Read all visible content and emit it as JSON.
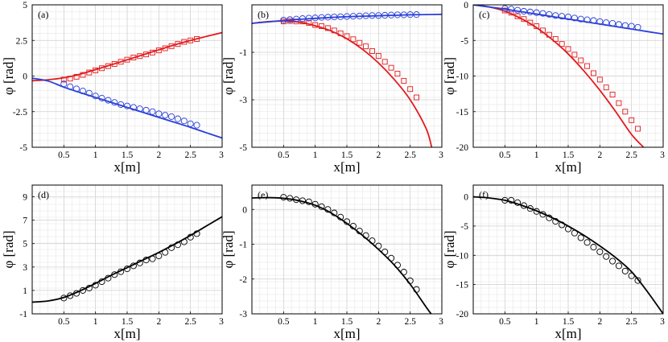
{
  "colors": {
    "red": "#e41a1c",
    "blue": "#2a3fd9",
    "black": "#000000"
  },
  "chart_data": [
    {
      "type": "line",
      "panel": "(a)",
      "xlabel": "x[m]",
      "ylabel": "φ [rad]",
      "xlim": [
        0,
        3
      ],
      "ylim": [
        -5,
        5
      ],
      "xticks": [
        0.5,
        1,
        1.5,
        2,
        2.5,
        3
      ],
      "xtick_labels": [
        "0.5",
        "1",
        "1.5",
        "2",
        "2.5",
        "3"
      ],
      "yticks": [
        -5,
        -2.5,
        0,
        2.5,
        5
      ],
      "ytick_labels": [
        "-5",
        "-2.5",
        "0",
        "2.5",
        "5"
      ],
      "series": [
        {
          "name": "red curve",
          "style": "line",
          "color": "red",
          "x": [
            0,
            0.25,
            0.5,
            0.75,
            1,
            1.25,
            1.5,
            1.75,
            2,
            2.25,
            2.5,
            2.75,
            3
          ],
          "y": [
            -0.33,
            -0.26,
            -0.12,
            0.12,
            0.45,
            0.79,
            1.14,
            1.49,
            1.84,
            2.19,
            2.5,
            2.78,
            3.05
          ]
        },
        {
          "name": "red squares",
          "style": "square",
          "color": "red",
          "x": [
            0.5,
            0.6,
            0.7,
            0.8,
            0.9,
            1.0,
            1.1,
            1.2,
            1.3,
            1.4,
            1.5,
            1.6,
            1.7,
            1.8,
            1.9,
            2.0,
            2.1,
            2.2,
            2.3,
            2.4,
            2.5,
            2.6
          ],
          "y": [
            -0.25,
            -0.18,
            -0.05,
            0.08,
            0.25,
            0.4,
            0.55,
            0.7,
            0.85,
            1.0,
            1.15,
            1.3,
            1.4,
            1.52,
            1.65,
            1.8,
            1.95,
            2.1,
            2.25,
            2.4,
            2.5,
            2.6
          ]
        },
        {
          "name": "blue curve",
          "style": "line",
          "color": "blue",
          "x": [
            0,
            0.25,
            0.5,
            0.75,
            1,
            1.25,
            1.5,
            1.75,
            2,
            2.25,
            2.5,
            2.75,
            3
          ],
          "y": [
            -0.15,
            -0.35,
            -0.78,
            -1.15,
            -1.5,
            -1.85,
            -2.2,
            -2.55,
            -2.9,
            -3.25,
            -3.6,
            -3.98,
            -4.35
          ]
        },
        {
          "name": "blue circles",
          "style": "circle",
          "color": "blue",
          "x": [
            0.5,
            0.6,
            0.7,
            0.8,
            0.9,
            1.0,
            1.1,
            1.2,
            1.3,
            1.4,
            1.5,
            1.6,
            1.7,
            1.8,
            1.9,
            2.0,
            2.1,
            2.2,
            2.3,
            2.4,
            2.5,
            2.6
          ],
          "y": [
            -0.55,
            -0.75,
            -0.9,
            -1.05,
            -1.2,
            -1.4,
            -1.55,
            -1.7,
            -1.85,
            -2.0,
            -2.1,
            -2.2,
            -2.3,
            -2.4,
            -2.5,
            -2.65,
            -2.75,
            -2.85,
            -3.0,
            -3.15,
            -3.35,
            -3.45
          ]
        }
      ]
    },
    {
      "type": "line",
      "panel": "(b)",
      "xlabel": "x[m]",
      "ylabel": "φ [rad]",
      "xlim": [
        0,
        3
      ],
      "ylim": [
        -5,
        1
      ],
      "xticks": [
        0.5,
        1,
        1.5,
        2,
        2.5,
        3
      ],
      "xtick_labels": [
        "0.5",
        "1",
        "1.5",
        "2",
        "2.5",
        "3"
      ],
      "yticks": [
        -5,
        -3,
        -1
      ],
      "ytick_labels": [
        "-5",
        "-3",
        "-1"
      ],
      "series": [
        {
          "name": "red curve",
          "style": "line",
          "color": "red",
          "x": [
            0,
            0.25,
            0.5,
            0.75,
            1,
            1.25,
            1.5,
            1.75,
            2,
            2.25,
            2.5,
            2.75,
            2.84
          ],
          "y": [
            0.22,
            0.29,
            0.32,
            0.27,
            0.12,
            -0.1,
            -0.43,
            -0.88,
            -1.45,
            -2.15,
            -3.0,
            -4.2,
            -5.0
          ]
        },
        {
          "name": "red squares",
          "style": "square",
          "color": "red",
          "x": [
            0.5,
            0.6,
            0.7,
            0.8,
            0.9,
            1.0,
            1.1,
            1.2,
            1.3,
            1.4,
            1.5,
            1.6,
            1.7,
            1.8,
            1.9,
            2.0,
            2.1,
            2.2,
            2.3,
            2.4,
            2.5,
            2.6
          ],
          "y": [
            0.3,
            0.32,
            0.3,
            0.3,
            0.24,
            0.15,
            0.1,
            0.02,
            -0.08,
            -0.2,
            -0.32,
            -0.45,
            -0.6,
            -0.75,
            -0.95,
            -1.15,
            -1.4,
            -1.65,
            -1.9,
            -2.2,
            -2.55,
            -2.9
          ]
        },
        {
          "name": "blue curve",
          "style": "line",
          "color": "blue",
          "x": [
            0,
            0.25,
            0.5,
            0.75,
            1,
            1.25,
            1.5,
            1.75,
            2,
            2.25,
            2.5,
            2.75,
            3
          ],
          "y": [
            0.22,
            0.28,
            0.34,
            0.39,
            0.43,
            0.47,
            0.5,
            0.52,
            0.54,
            0.56,
            0.58,
            0.59,
            0.6
          ]
        },
        {
          "name": "blue circles",
          "style": "circle",
          "color": "blue",
          "x": [
            0.5,
            0.6,
            0.7,
            0.8,
            0.9,
            1.0,
            1.1,
            1.2,
            1.3,
            1.4,
            1.5,
            1.6,
            1.7,
            1.8,
            1.9,
            2.0,
            2.1,
            2.2,
            2.3,
            2.4,
            2.5,
            2.6
          ],
          "y": [
            0.36,
            0.38,
            0.4,
            0.42,
            0.44,
            0.45,
            0.47,
            0.48,
            0.49,
            0.5,
            0.51,
            0.52,
            0.53,
            0.54,
            0.55,
            0.55,
            0.56,
            0.57,
            0.58,
            0.58,
            0.59,
            0.59
          ]
        }
      ]
    },
    {
      "type": "line",
      "panel": "(c)",
      "xlabel": "x[m]",
      "ylabel": "φ [rad]",
      "xlim": [
        0,
        3
      ],
      "ylim": [
        -20,
        0
      ],
      "xticks": [
        0.5,
        1,
        1.5,
        2,
        2.5,
        3
      ],
      "xtick_labels": [
        "0.5",
        "1",
        "1.5",
        "2",
        "2.5",
        "3"
      ],
      "yticks": [
        -20,
        -15,
        -10,
        -5,
        0
      ],
      "ytick_labels": [
        "-20",
        "-15",
        "-10",
        "-5",
        "0"
      ],
      "series": [
        {
          "name": "red curve",
          "style": "line",
          "color": "red",
          "x": [
            0,
            0.25,
            0.5,
            0.75,
            1,
            1.25,
            1.5,
            1.75,
            2,
            2.25,
            2.5,
            2.69
          ],
          "y": [
            0,
            -0.3,
            -0.9,
            -1.9,
            -3.2,
            -4.9,
            -6.9,
            -9.3,
            -12.0,
            -15.0,
            -18.2,
            -20.0
          ]
        },
        {
          "name": "red squares",
          "style": "square",
          "color": "red",
          "x": [
            0.5,
            0.6,
            0.7,
            0.8,
            0.9,
            1.0,
            1.1,
            1.2,
            1.3,
            1.4,
            1.5,
            1.6,
            1.7,
            1.8,
            1.9,
            2.0,
            2.1,
            2.2,
            2.3,
            2.4,
            2.5,
            2.6
          ],
          "y": [
            -0.8,
            -1.1,
            -1.6,
            -2.0,
            -2.5,
            -3.0,
            -3.6,
            -4.2,
            -4.8,
            -5.5,
            -6.2,
            -7.0,
            -7.8,
            -8.6,
            -9.6,
            -10.5,
            -11.6,
            -12.6,
            -13.8,
            -15.0,
            -16.2,
            -17.4
          ]
        },
        {
          "name": "blue curve",
          "style": "line",
          "color": "blue",
          "x": [
            0,
            0.25,
            0.5,
            0.75,
            1,
            1.25,
            1.5,
            1.75,
            2,
            2.25,
            2.5,
            2.75,
            3
          ],
          "y": [
            0,
            -0.3,
            -0.6,
            -0.95,
            -1.3,
            -1.65,
            -2.0,
            -2.35,
            -2.7,
            -3.05,
            -3.4,
            -3.75,
            -4.1
          ]
        },
        {
          "name": "blue circles",
          "style": "circle",
          "color": "blue",
          "x": [
            0.5,
            0.6,
            0.7,
            0.8,
            0.9,
            1.0,
            1.1,
            1.2,
            1.3,
            1.4,
            1.5,
            1.6,
            1.7,
            1.8,
            1.9,
            2.0,
            2.1,
            2.2,
            2.3,
            2.4,
            2.5,
            2.6
          ],
          "y": [
            -0.5,
            -0.6,
            -0.75,
            -0.9,
            -1.0,
            -1.1,
            -1.2,
            -1.35,
            -1.5,
            -1.6,
            -1.7,
            -1.85,
            -2.0,
            -2.1,
            -2.2,
            -2.35,
            -2.5,
            -2.6,
            -2.75,
            -2.9,
            -3.0,
            -3.15
          ]
        }
      ]
    },
    {
      "type": "line",
      "panel": "(d)",
      "xlabel": "x[m]",
      "ylabel": "φ [rad]",
      "xlim": [
        0,
        3
      ],
      "ylim": [
        -1,
        10
      ],
      "xticks": [
        0.5,
        1,
        1.5,
        2,
        2.5,
        3
      ],
      "xtick_labels": [
        "0.5",
        "1",
        "1.5",
        "2",
        "2.5",
        "3"
      ],
      "yticks": [
        -1,
        1,
        3,
        5,
        7,
        9
      ],
      "ytick_labels": [
        "-1",
        "1",
        "3",
        "5",
        "7",
        "9"
      ],
      "series": [
        {
          "name": "black curve",
          "style": "line",
          "color": "black",
          "x": [
            0,
            0.25,
            0.5,
            0.75,
            1,
            1.25,
            1.5,
            1.75,
            2,
            2.25,
            2.5,
            2.75,
            3
          ],
          "y": [
            0.0,
            0.1,
            0.4,
            0.95,
            1.6,
            2.3,
            2.95,
            3.6,
            4.25,
            4.95,
            5.7,
            6.5,
            7.3
          ]
        },
        {
          "name": "black circles",
          "style": "circle",
          "color": "black",
          "x": [
            0.5,
            0.6,
            0.7,
            0.8,
            0.9,
            1.0,
            1.1,
            1.2,
            1.3,
            1.4,
            1.5,
            1.6,
            1.7,
            1.8,
            1.9,
            2.0,
            2.1,
            2.2,
            2.3,
            2.4,
            2.5,
            2.6
          ],
          "y": [
            0.35,
            0.55,
            0.75,
            1.0,
            1.2,
            1.45,
            1.75,
            2.05,
            2.35,
            2.6,
            2.85,
            3.1,
            3.35,
            3.6,
            3.7,
            3.95,
            4.25,
            4.65,
            4.9,
            5.15,
            5.55,
            5.85
          ]
        }
      ]
    },
    {
      "type": "line",
      "panel": "(e)",
      "xlabel": "x[m]",
      "ylabel": "φ [rad]",
      "xlim": [
        0,
        3
      ],
      "ylim": [
        -3,
        0.7
      ],
      "xticks": [
        0.5,
        1,
        1.5,
        2,
        2.5,
        3
      ],
      "xtick_labels": [
        "0.5",
        "1",
        "1.5",
        "2",
        "2.5",
        "3"
      ],
      "yticks": [
        -3,
        -2,
        -1,
        0
      ],
      "ytick_labels": [
        "-3",
        "-2",
        "-1",
        "0"
      ],
      "series": [
        {
          "name": "black curve",
          "style": "line",
          "color": "black",
          "x": [
            0,
            0.25,
            0.5,
            0.75,
            1,
            1.25,
            1.5,
            1.75,
            2,
            2.25,
            2.5,
            2.75,
            2.83
          ],
          "y": [
            0.33,
            0.34,
            0.32,
            0.25,
            0.12,
            -0.1,
            -0.4,
            -0.75,
            -1.15,
            -1.6,
            -2.15,
            -2.8,
            -3.0
          ]
        },
        {
          "name": "black circles",
          "style": "circle",
          "color": "black",
          "x": [
            0.5,
            0.6,
            0.7,
            0.8,
            0.9,
            1.0,
            1.1,
            1.2,
            1.3,
            1.4,
            1.5,
            1.6,
            1.7,
            1.8,
            1.9,
            2.0,
            2.1,
            2.2,
            2.3,
            2.4,
            2.5,
            2.6
          ],
          "y": [
            0.35,
            0.32,
            0.28,
            0.25,
            0.22,
            0.15,
            0.08,
            0.0,
            -0.1,
            -0.22,
            -0.35,
            -0.48,
            -0.62,
            -0.75,
            -0.9,
            -1.05,
            -1.22,
            -1.4,
            -1.6,
            -1.8,
            -2.05,
            -2.3
          ]
        }
      ]
    },
    {
      "type": "line",
      "panel": "(f)",
      "xlabel": "x[m]",
      "ylabel": "φ [rad]",
      "xlim": [
        0,
        3
      ],
      "ylim": [
        -20,
        2
      ],
      "xticks": [
        0.5,
        1,
        1.5,
        2,
        2.5,
        3
      ],
      "xtick_labels": [
        "0.5",
        "1",
        "1.5",
        "2",
        "2.5",
        "3"
      ],
      "yticks": [
        -20,
        -15,
        -10,
        -5,
        0
      ],
      "ytick_labels": [
        "-20",
        "-15",
        "-10",
        "-5",
        "0"
      ],
      "series": [
        {
          "name": "black curve",
          "style": "line",
          "color": "black",
          "x": [
            0,
            0.25,
            0.5,
            0.75,
            1,
            1.25,
            1.5,
            1.75,
            2,
            2.25,
            2.5,
            2.75,
            3
          ],
          "y": [
            0,
            -0.2,
            -0.6,
            -1.4,
            -2.4,
            -3.6,
            -5.0,
            -6.6,
            -8.4,
            -10.4,
            -12.8,
            -16.2,
            -20.0
          ]
        },
        {
          "name": "black circles",
          "style": "circle",
          "color": "black",
          "x": [
            0.5,
            0.6,
            0.7,
            0.8,
            0.9,
            1.0,
            1.1,
            1.2,
            1.3,
            1.4,
            1.5,
            1.6,
            1.7,
            1.8,
            1.9,
            2.0,
            2.1,
            2.2,
            2.3,
            2.4,
            2.5,
            2.6
          ],
          "y": [
            -0.6,
            -0.6,
            -1.0,
            -1.5,
            -2.0,
            -2.5,
            -3.0,
            -3.6,
            -4.2,
            -4.8,
            -5.5,
            -6.2,
            -7.0,
            -7.8,
            -8.6,
            -9.4,
            -10.2,
            -11.0,
            -11.8,
            -12.7,
            -13.5,
            -14.3
          ]
        }
      ]
    }
  ]
}
